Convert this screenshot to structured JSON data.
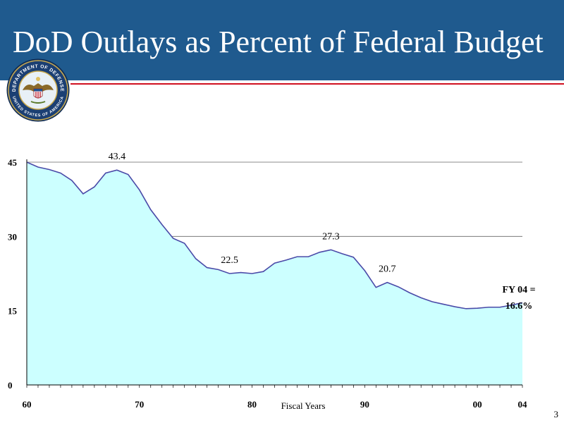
{
  "slide": {
    "title": "DoD Outlays as Percent of Federal Budget",
    "page_number": "3",
    "header_color": "#1f5a8e",
    "rule_color": "#d01020"
  },
  "seal": {
    "icon": "department-of-defense-seal",
    "text_top": "DEPARTMENT OF DEFENSE",
    "text_bottom": "UNITED STATES OF AMERICA"
  },
  "chart_data": {
    "type": "area",
    "title": "",
    "xlabel": "Fiscal Years",
    "ylabel": "",
    "xlim": [
      1960,
      2004
    ],
    "ylim": [
      0,
      45
    ],
    "yticks": [
      0,
      15,
      30,
      45
    ],
    "ytick_labels": [
      "0",
      "15",
      "30",
      "45"
    ],
    "xticks": [
      1960,
      1970,
      1980,
      1990,
      2000,
      2004
    ],
    "xtick_labels": [
      "60",
      "70",
      "80",
      "90",
      "00",
      "04"
    ],
    "grid": true,
    "fill_color": "#ccffff",
    "line_color": "#4a4aa8",
    "x": [
      1960,
      1961,
      1962,
      1963,
      1964,
      1965,
      1966,
      1967,
      1968,
      1969,
      1970,
      1971,
      1972,
      1973,
      1974,
      1975,
      1976,
      1977,
      1978,
      1979,
      1980,
      1981,
      1982,
      1983,
      1984,
      1985,
      1986,
      1987,
      1988,
      1989,
      1990,
      1991,
      1992,
      1993,
      1994,
      1995,
      1996,
      1997,
      1998,
      1999,
      2000,
      2001,
      2002,
      2003,
      2004
    ],
    "values": [
      45.0,
      44.0,
      43.5,
      42.8,
      41.3,
      38.6,
      40.0,
      42.8,
      43.4,
      42.5,
      39.4,
      35.4,
      32.4,
      29.6,
      28.6,
      25.5,
      23.7,
      23.3,
      22.5,
      22.7,
      22.5,
      22.9,
      24.6,
      25.2,
      25.9,
      25.9,
      26.8,
      27.3,
      26.5,
      25.8,
      23.1,
      19.7,
      20.7,
      19.8,
      18.6,
      17.6,
      16.8,
      16.3,
      15.8,
      15.4,
      15.5,
      15.7,
      15.7,
      16.1,
      16.6
    ],
    "annotations": [
      {
        "x": 1968,
        "y": 43.4,
        "text": "43.4"
      },
      {
        "x": 1978,
        "y": 22.5,
        "text": "22.5"
      },
      {
        "x": 1987,
        "y": 27.3,
        "text": "27.3"
      },
      {
        "x": 1992,
        "y": 20.7,
        "text": "20.7"
      }
    ],
    "callout": {
      "line1": "FY 04 =",
      "line2": "16.6%"
    }
  }
}
